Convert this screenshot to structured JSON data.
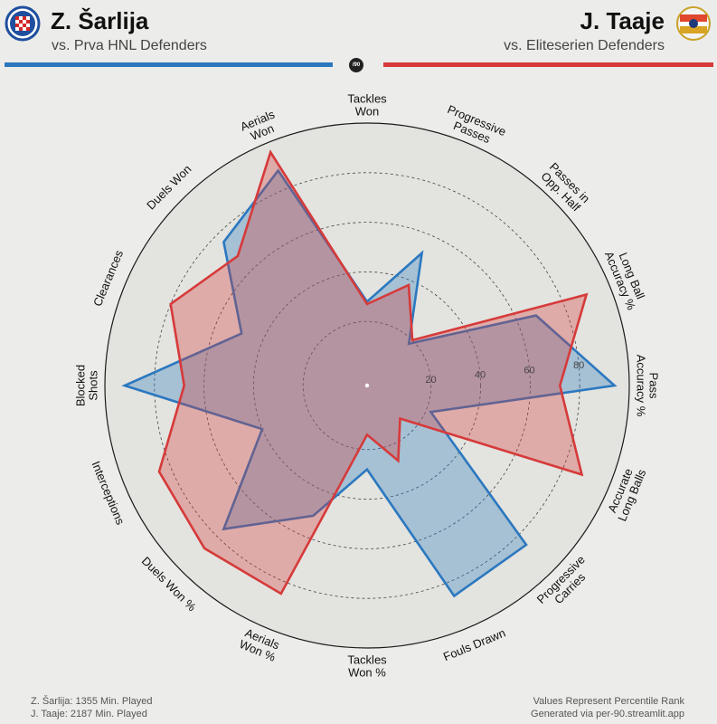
{
  "header": {
    "p1_name": "Z. Šarlija",
    "p1_sub": "vs. Prva HNL Defenders",
    "p2_name": "J. Taaje",
    "p2_sub": "vs. Eliteserien Defenders",
    "center_logo_text": "/90",
    "p1_color": "#2b78bf",
    "p2_color": "#d63a3a",
    "p1_badge_icon": "hajduk-split-crest",
    "p2_badge_icon": "stromsgodset-crest"
  },
  "footer": {
    "p1_minutes": "Z. Šarlija: 1355 Min. Played",
    "p2_minutes": "J. Taaje: 2187 Min. Played",
    "note": "Values Represent Percentile Rank",
    "generated": "Generated via per-90.streamlit.app"
  },
  "chart_data": {
    "type": "radar",
    "range": [
      0,
      100
    ],
    "ring_ticks": [
      20,
      40,
      60,
      80
    ],
    "categories": [
      "Tackles\nWon",
      "Progressive\nPasses",
      "Passes in\nOpp. Half",
      "Long Ball\nAccuracy %",
      "Pass\nAccuracy %",
      "Accurate\nLong Balls",
      "Progressive\nCarries",
      "Fouls Drawn",
      "Tackles\nWon %",
      "Aerials\nWon %",
      "Duels Won %",
      "Interceptions",
      "Blocked\nShots",
      "Clearances",
      "Duels Won",
      "Aerials\nWon"
    ],
    "series": [
      {
        "name": "Z. Šarlija",
        "color": "#2b78bf",
        "values": [
          28,
          52,
          18,
          68,
          94,
          22,
          85,
          86,
          28,
          51,
          76,
          40,
          92,
          49,
          76,
          88
        ]
      },
      {
        "name": "J. Taaje",
        "color": "#d63a3a",
        "values": [
          27,
          38,
          20,
          90,
          72,
          88,
          13,
          27,
          14,
          85,
          87,
          85,
          68,
          80,
          68,
          96
        ]
      }
    ]
  }
}
